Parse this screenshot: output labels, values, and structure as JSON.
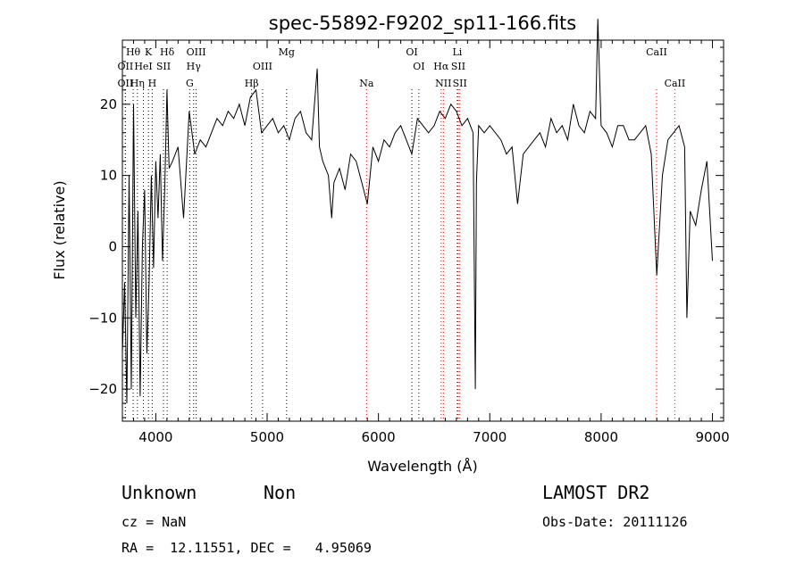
{
  "chart_data": {
    "type": "line",
    "title": "spec-55892-F9202_sp11-166.fits",
    "xlabel": "Wavelength (Å)",
    "ylabel": "Flux (relative)",
    "xlim": [
      3700,
      9100
    ],
    "ylim": [
      -24.5,
      29
    ],
    "xticks": [
      4000,
      5000,
      6000,
      7000,
      8000,
      9000
    ],
    "yticks": [
      -20,
      -10,
      0,
      10,
      20
    ],
    "grid": false,
    "series": [
      {
        "x": [
          3700,
          3720,
          3740,
          3760,
          3780,
          3800,
          3820,
          3840,
          3860,
          3880,
          3900,
          3920,
          3940,
          3960,
          3980,
          4000,
          4020,
          4040,
          4060,
          4080,
          4100,
          4120,
          4150,
          4200,
          4250,
          4300,
          4350,
          4400,
          4450,
          4500,
          4550,
          4600,
          4650,
          4700,
          4750,
          4800,
          4850,
          4900,
          4950,
          5000,
          5050,
          5100,
          5150,
          5200,
          5250,
          5300,
          5350,
          5400,
          5450,
          5470,
          5500,
          5550,
          5580,
          5600,
          5650,
          5700,
          5750,
          5800,
          5850,
          5900,
          5950,
          6000,
          6050,
          6100,
          6150,
          6200,
          6250,
          6300,
          6350,
          6400,
          6450,
          6500,
          6550,
          6600,
          6650,
          6700,
          6750,
          6800,
          6850,
          6870,
          6880,
          6900,
          6950,
          7000,
          7050,
          7100,
          7150,
          7200,
          7250,
          7300,
          7350,
          7400,
          7450,
          7500,
          7550,
          7600,
          7650,
          7700,
          7750,
          7800,
          7850,
          7900,
          7950,
          7970,
          8000,
          8050,
          8100,
          8150,
          8200,
          8250,
          8300,
          8350,
          8400,
          8450,
          8500,
          8550,
          8600,
          8650,
          8700,
          8750,
          8770,
          8800,
          8850,
          8900,
          8950,
          9000
        ],
        "y": [
          -15,
          -5,
          -22,
          10,
          -20,
          20,
          -10,
          5,
          -21,
          0,
          8,
          -15,
          -5,
          10,
          -3,
          12,
          4,
          13,
          -2,
          8,
          22,
          11,
          12,
          14,
          4,
          19,
          13,
          15,
          14,
          16,
          18,
          17,
          19,
          18,
          20,
          17,
          21,
          22,
          16,
          17,
          18,
          16,
          17,
          15,
          18,
          19,
          16,
          15,
          25,
          14,
          12,
          10,
          4,
          9,
          11,
          8,
          13,
          12,
          9,
          6,
          14,
          12,
          15,
          14,
          16,
          17,
          15,
          13,
          18,
          17,
          16,
          17,
          19,
          18,
          20,
          19,
          17,
          18,
          16,
          -20,
          9,
          17,
          16,
          17,
          16,
          15,
          13,
          14,
          6,
          13,
          14,
          15,
          16,
          14,
          18,
          16,
          17,
          15,
          20,
          17,
          16,
          19,
          18,
          32,
          17,
          16,
          14,
          17,
          17,
          15,
          15,
          16,
          17,
          13,
          -4,
          10,
          15,
          16,
          17,
          14,
          -10,
          5,
          3,
          8,
          12,
          -2
        ]
      }
    ],
    "lines": [
      {
        "label": "Hθ",
        "x": 3797,
        "row": 1,
        "color": "#000000"
      },
      {
        "label": "K",
        "x": 3934,
        "row": 1,
        "color": "#000000"
      },
      {
        "label": "Hδ",
        "x": 4102,
        "row": 1,
        "color": "#000000"
      },
      {
        "label": "OIII",
        "x": 4363,
        "row": 1,
        "color": "#000000"
      },
      {
        "label": "Mg",
        "x": 5175,
        "row": 1,
        "color": "#000000"
      },
      {
        "label": "OI",
        "x": 6300,
        "row": 1,
        "color": "#000000"
      },
      {
        "label": "Li",
        "x": 6708,
        "row": 1,
        "color": "#000000"
      },
      {
        "label": "CaII",
        "x": 8498,
        "row": 1,
        "color": "#ff0000"
      },
      {
        "label": "OII",
        "x": 3727,
        "row": 2,
        "color": "#000000"
      },
      {
        "label": "HeI",
        "x": 3889,
        "row": 2,
        "color": "#000000"
      },
      {
        "label": "SII",
        "x": 4069,
        "row": 2,
        "color": "#000000"
      },
      {
        "label": "Hγ",
        "x": 4340,
        "row": 2,
        "color": "#000000"
      },
      {
        "label": "OIII",
        "x": 4959,
        "row": 2,
        "color": "#000000"
      },
      {
        "label": "OI",
        "x": 6363,
        "row": 2,
        "color": "#000000"
      },
      {
        "label": "Hα",
        "x": 6563,
        "row": 2,
        "color": "#ff0000"
      },
      {
        "label": "SII",
        "x": 6717,
        "row": 2,
        "color": "#ff0000"
      },
      {
        "label": "OII",
        "x": 3727,
        "row": 3,
        "color": "#000000"
      },
      {
        "label": "Hη",
        "x": 3835,
        "row": 3,
        "color": "#000000"
      },
      {
        "label": "H",
        "x": 3968,
        "row": 3,
        "color": "#000000"
      },
      {
        "label": "G",
        "x": 4305,
        "row": 3,
        "color": "#000000"
      },
      {
        "label": "Hβ",
        "x": 4861,
        "row": 3,
        "color": "#000000"
      },
      {
        "label": "Na",
        "x": 5893,
        "row": 3,
        "color": "#ff0000"
      },
      {
        "label": "NII",
        "x": 6583,
        "row": 3,
        "color": "#ff0000"
      },
      {
        "label": "SII",
        "x": 6731,
        "row": 3,
        "color": "#ff0000"
      },
      {
        "label": "CaII",
        "x": 8662,
        "row": 3,
        "color": "#ff0000"
      }
    ]
  },
  "info": {
    "class": "Unknown",
    "subclass": "Non",
    "survey": "LAMOST DR2",
    "cz": "cz = NaN",
    "obs_date": "Obs-Date: 20111126",
    "coords": "RA =  12.11551, DEC =   4.95069"
  }
}
